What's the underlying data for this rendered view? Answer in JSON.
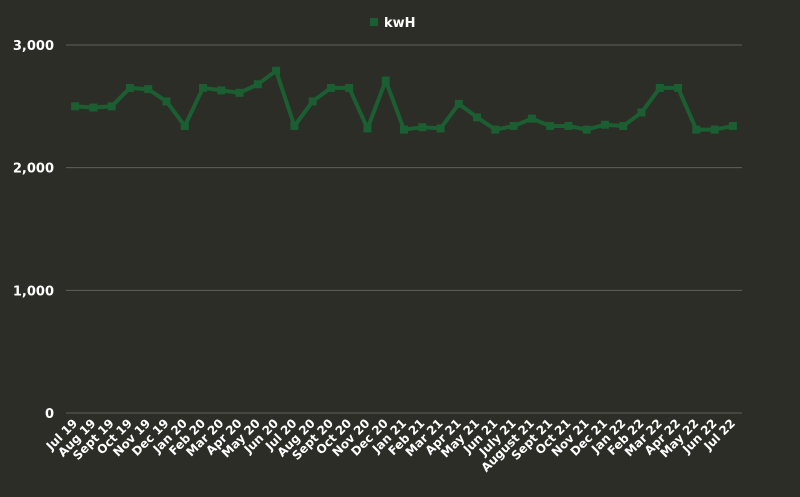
{
  "chart_data": {
    "type": "line",
    "title": "",
    "xlabel": "",
    "ylabel": "",
    "ylim": [
      0,
      3000
    ],
    "yticks": [
      0,
      1000,
      2000,
      3000
    ],
    "ytick_labels": [
      "0",
      "1,000",
      "2,000",
      "3,000"
    ],
    "grid": true,
    "legend_position": "top-center",
    "categories": [
      "Jul 19",
      "Aug 19",
      "Sept 19",
      "Oct 19",
      "Nov 19",
      "Dec 19",
      "Jan 20",
      "Feb 20",
      "Mar 20",
      "Apr 20",
      "May 20",
      "Jun 20",
      "Jul 20",
      "Aug 20",
      "Sept 20",
      "Oct 20",
      "Nov 20",
      "Dec 20",
      "Jan 21",
      "Feb 21",
      "Mar 21",
      "Apr 21",
      "May 21",
      "Jun 21",
      "July 21",
      "August 21",
      "Sept 21",
      "Oct 21",
      "Nov 21",
      "Dec 21",
      "Jan 22",
      "Feb 22",
      "Mar 22",
      "Apr 22",
      "May 22",
      "Jun 22",
      "Jul 22"
    ],
    "series": [
      {
        "name": "kwH",
        "color": "#1b5e32",
        "values": [
          2500,
          2490,
          2500,
          2650,
          2640,
          2540,
          2340,
          2650,
          2630,
          2610,
          2680,
          2790,
          2340,
          2540,
          2650,
          2650,
          2320,
          2710,
          2310,
          2330,
          2320,
          2520,
          2410,
          2310,
          2340,
          2400,
          2340,
          2340,
          2310,
          2350,
          2340,
          2450,
          2650,
          2650,
          2310,
          2310,
          2340
        ]
      }
    ]
  },
  "colors": {
    "background": "#2c2d26",
    "gridline": "#5f6058",
    "text": "#ffffff"
  }
}
